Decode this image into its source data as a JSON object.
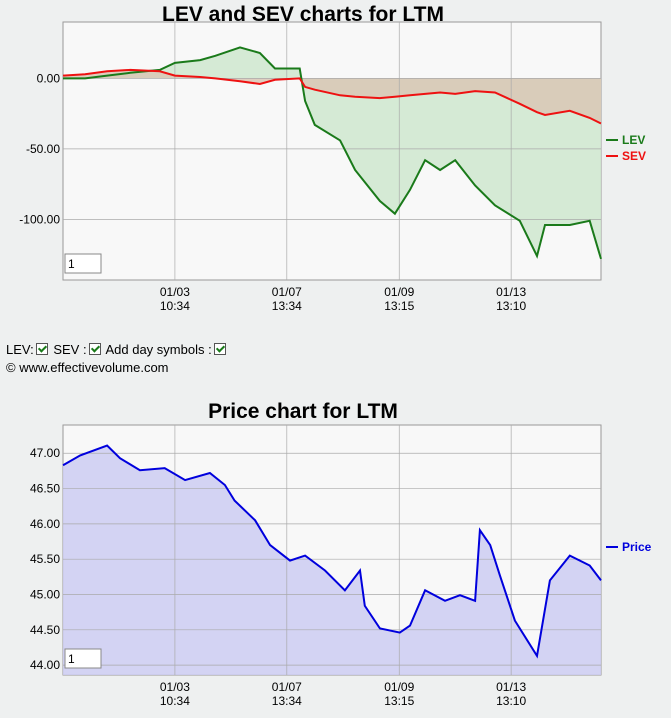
{
  "chart_data": [
    {
      "type": "line",
      "title": "LEV and SEV charts for LTM",
      "x": [
        0,
        4.1,
        8.2,
        12.5,
        18,
        20.8,
        25.5,
        28.3,
        32.9,
        36.6,
        39.4,
        44,
        45,
        46.8,
        51.5,
        54.3,
        58.9,
        61.7,
        64.5,
        67.3,
        70.1,
        72.9,
        76.6,
        80.3,
        84.9,
        88.1,
        89.6,
        94.2,
        97.9,
        100
      ],
      "series": [
        {
          "name": "LEV",
          "color": "#1a7a1a",
          "fill": "#cfe8cf",
          "values": [
            0,
            0,
            2,
            4,
            6,
            11,
            13,
            16,
            22,
            18,
            7,
            7,
            -16,
            -33,
            -44,
            -65,
            -87,
            -96,
            -79,
            -58,
            -65,
            -58,
            -76,
            -90,
            -101,
            -126,
            -104,
            -104,
            -101,
            -128
          ]
        },
        {
          "name": "SEV",
          "color": "#ee1111",
          "fill": "#d9c7b5",
          "values": [
            2,
            3,
            5,
            6,
            5,
            2,
            1,
            0,
            -2,
            -4,
            -1,
            0,
            -6,
            -8,
            -12,
            -13,
            -14,
            -13,
            -12,
            -11,
            -10,
            -11,
            -9,
            -10,
            -18,
            -24,
            -26,
            -23,
            -28,
            -32
          ]
        }
      ],
      "xlim": [
        0,
        100
      ],
      "ylim": [
        -143,
        40
      ],
      "xticks": [
        {
          "value": 20.8,
          "label": "01/03 10:34"
        },
        {
          "value": 41.6,
          "label": "01/07 13:34"
        },
        {
          "value": 62.5,
          "label": "01/09 13:15"
        },
        {
          "value": 83.3,
          "label": "01/13 13:10"
        }
      ],
      "yticks": [
        {
          "value": 0,
          "label": "0.00"
        },
        {
          "value": -50,
          "label": "-50.00"
        },
        {
          "value": -100,
          "label": "-100.00"
        }
      ],
      "grid": true,
      "legend": "right",
      "zoom_input": "1"
    },
    {
      "type": "line",
      "title": "Price chart for LTM",
      "x": [
        0,
        3.2,
        8.2,
        10.6,
        14.3,
        18.9,
        22.7,
        27.3,
        30.1,
        31.9,
        35.7,
        38.5,
        42.2,
        45,
        48.7,
        52.4,
        55.2,
        56.1,
        58.9,
        62.6,
        64.5,
        67.3,
        71,
        73.8,
        76.6,
        77.5,
        79.4,
        81.2,
        84,
        88.1,
        90.5,
        94.2,
        97.9,
        100
      ],
      "series": [
        {
          "name": "Price",
          "color": "#0000dd",
          "fill": "#ccccf2",
          "values": [
            46.83,
            46.97,
            47.11,
            46.93,
            46.76,
            46.79,
            46.62,
            46.72,
            46.55,
            46.33,
            46.05,
            45.7,
            45.48,
            45.55,
            45.34,
            45.06,
            45.34,
            44.84,
            44.52,
            44.46,
            44.56,
            45.06,
            44.91,
            44.99,
            44.91,
            45.91,
            45.7,
            45.27,
            44.63,
            44.13,
            45.2,
            45.55,
            45.41,
            45.2
          ]
        }
      ],
      "xlim": [
        0,
        100
      ],
      "ylim": [
        43.86,
        47.4
      ],
      "xticks": [
        {
          "value": 20.8,
          "label": "01/03 10:34"
        },
        {
          "value": 41.6,
          "label": "01/07 13:34"
        },
        {
          "value": 62.5,
          "label": "01/09 13:15"
        },
        {
          "value": 83.3,
          "label": "01/13 13:10"
        }
      ],
      "yticks": [
        {
          "value": 47,
          "label": "47.00"
        },
        {
          "value": 46.5,
          "label": "46.50"
        },
        {
          "value": 46,
          "label": "46.00"
        },
        {
          "value": 45.5,
          "label": "45.50"
        },
        {
          "value": 45,
          "label": "45.00"
        },
        {
          "value": 44.5,
          "label": "44.50"
        },
        {
          "value": 44,
          "label": "44.00"
        }
      ],
      "grid": true,
      "legend": "right",
      "zoom_input": "1"
    }
  ],
  "controls": {
    "lev": "LEV:",
    "sev": "SEV :",
    "day_symbols": "Add day symbols :",
    "copyright": "© www.effectivevolume.com"
  }
}
